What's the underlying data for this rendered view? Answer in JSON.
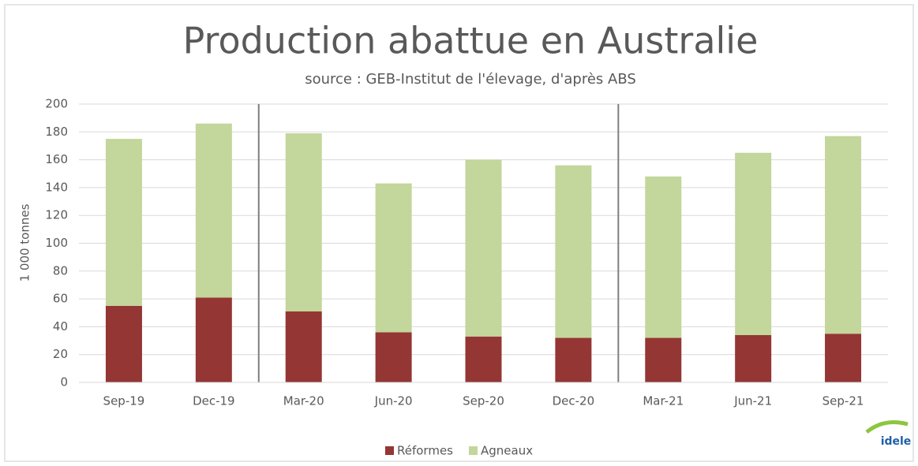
{
  "chart_data": {
    "type": "bar",
    "stacked": true,
    "title": "Production abattue en Australie",
    "subtitle": "source : GEB-Institut de l'élevage, d'après ABS",
    "y_label": "1 000 tonnes",
    "categories": [
      "Sep-19",
      "Dec-19",
      "Mar-20",
      "Jun-20",
      "Sep-20",
      "Dec-20",
      "Mar-21",
      "Jun-21",
      "Sep-21"
    ],
    "series": [
      {
        "name": "Réformes",
        "color": "#943634",
        "values": [
          55,
          61,
          51,
          36,
          33,
          32,
          32,
          34,
          35
        ]
      },
      {
        "name": "Agneaux",
        "color": "#c3d69b",
        "values": [
          120,
          125,
          128,
          107,
          127,
          124,
          116,
          131,
          142
        ]
      }
    ],
    "ylim": [
      0,
      200
    ],
    "yticks": [
      0,
      20,
      40,
      60,
      80,
      100,
      120,
      140,
      160,
      180,
      200
    ],
    "grid": true,
    "legend": "bottom",
    "logo": "idele"
  }
}
